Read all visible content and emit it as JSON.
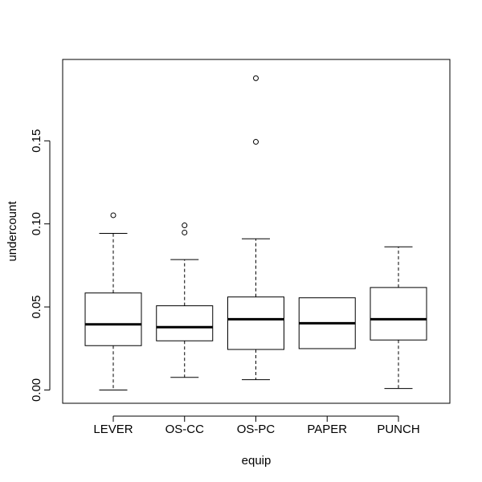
{
  "chart_data": {
    "type": "box",
    "title": "",
    "xlabel": "equip",
    "ylabel": "undercount",
    "ylim": [
      -0.008,
      0.199
    ],
    "y_ticks": [
      "0.00",
      "0.05",
      "0.10",
      "0.15"
    ],
    "y_tick_values": [
      0,
      0.05,
      0.1,
      0.15
    ],
    "categories": [
      "LEVER",
      "OS-CC",
      "OS-PC",
      "PAPER",
      "PUNCH"
    ],
    "boxes": [
      {
        "category": "LEVER",
        "whisker_low": 0.0,
        "q1": 0.0267,
        "median": 0.0395,
        "q3": 0.0584,
        "whisker_high": 0.0943,
        "outliers": [
          0.1052
        ]
      },
      {
        "category": "OS-CC",
        "whisker_low": 0.0076,
        "q1": 0.0296,
        "median": 0.0378,
        "q3": 0.0507,
        "whisker_high": 0.0785,
        "outliers": [
          0.0948,
          0.0991
        ]
      },
      {
        "category": "OS-PC",
        "whisker_low": 0.0062,
        "q1": 0.0244,
        "median": 0.0426,
        "q3": 0.056,
        "whisker_high": 0.091,
        "outliers": [
          0.1494,
          0.1877
        ]
      },
      {
        "category": "PAPER",
        "whisker_low": 0.0249,
        "q1": 0.0249,
        "median": 0.0402,
        "q3": 0.0555,
        "whisker_high": 0.0555,
        "outliers": []
      },
      {
        "category": "PUNCH",
        "whisker_low": 0.0009,
        "q1": 0.0301,
        "median": 0.0426,
        "q3": 0.0617,
        "whisker_high": 0.0862,
        "outliers": []
      }
    ]
  }
}
